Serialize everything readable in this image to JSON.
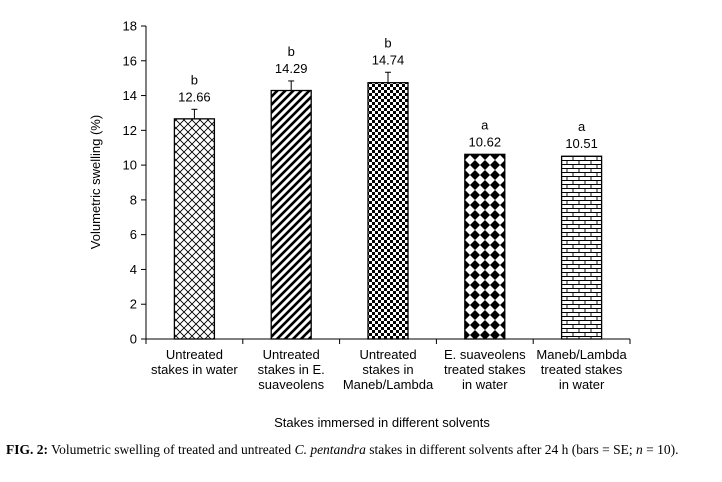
{
  "chart_data": {
    "type": "bar",
    "categories": [
      [
        "Untreated",
        "stakes in water"
      ],
      [
        "Untreated",
        "stakes in E.",
        "suaveolens"
      ],
      [
        "Untreated",
        "stakes in",
        "Maneb/Lambda"
      ],
      [
        "E. suaveolens",
        "treated stakes",
        "in water"
      ],
      [
        "Maneb/Lambda",
        "treated stakes",
        "in water"
      ]
    ],
    "values": [
      12.66,
      14.29,
      14.74,
      10.62,
      10.51
    ],
    "value_labels": [
      "12.66",
      "14.29",
      "14.74",
      "10.62",
      "10.51"
    ],
    "errors": [
      0.55,
      0.55,
      0.6,
      0.0,
      0.0
    ],
    "letters": [
      "b",
      "b",
      "b",
      "a",
      "a"
    ],
    "patterns": [
      "crosshatch",
      "diagonal",
      "checker",
      "diamond",
      "brick"
    ],
    "xlabel": "Stakes immersed  in different solvents",
    "ylabel": "Volumetric swelling (%)",
    "ylim": [
      0,
      18
    ],
    "yticks": [
      "0",
      "2",
      "4",
      "6",
      "8",
      "10",
      "12",
      "14",
      "16",
      "18"
    ],
    "grid": false,
    "legend": "none"
  },
  "caption": {
    "fig_id": "FIG. 2:",
    "text_before": " Volumetric swelling of treated and untreated ",
    "species": "C. pentandra",
    "text_after": "  stakes in different solvents after 24 h (bars = SE; ",
    "n_symbol": "n",
    "n_text": " = 10)."
  }
}
